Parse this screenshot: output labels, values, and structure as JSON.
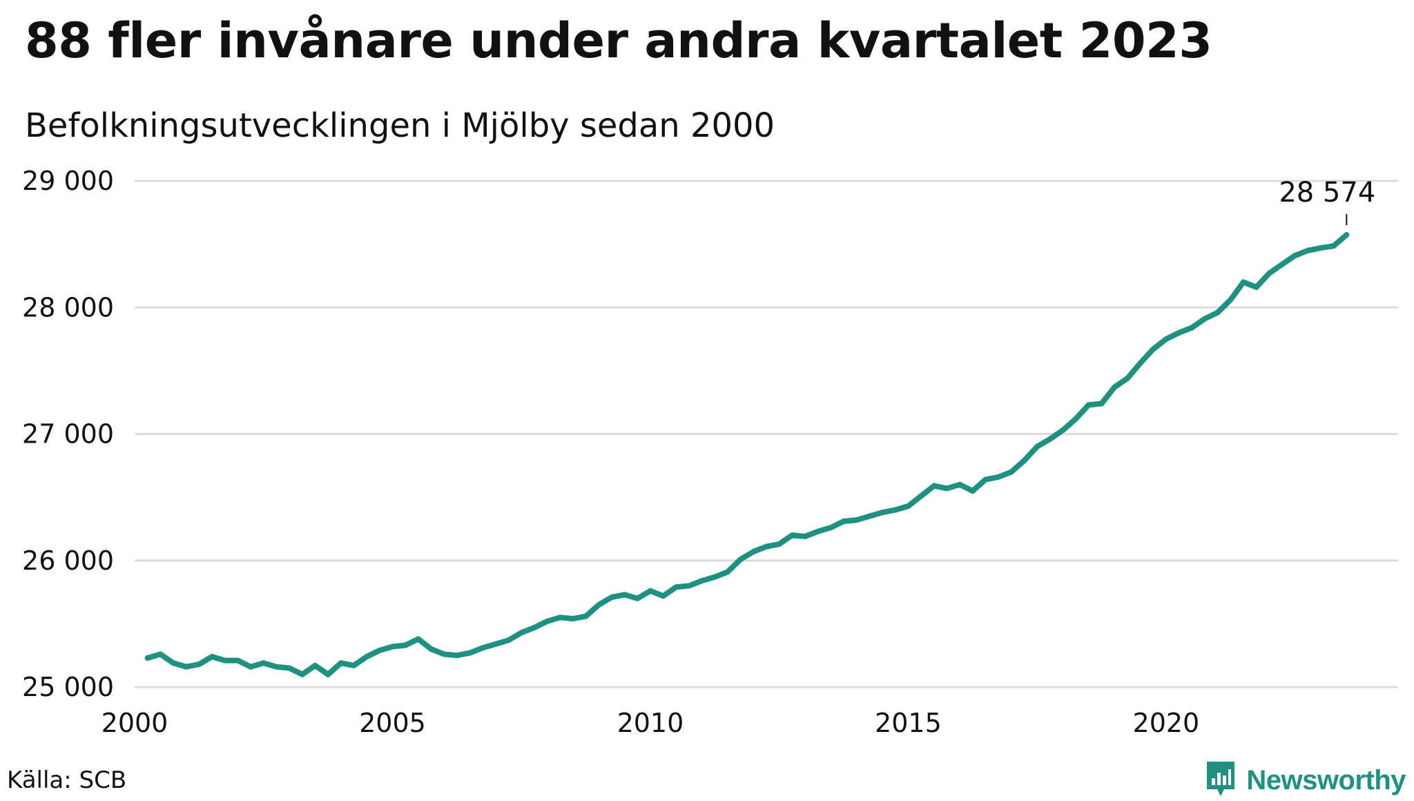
{
  "header": {
    "title": "88 fler invånare under andra kvartalet 2023",
    "subtitle": "Befolkningsutvecklingen i Mjölby sedan 2000"
  },
  "footer": {
    "source": "Källa: SCB",
    "brand": "Newsworthy",
    "brand_icon": "bar-chart-speech-bubble-icon"
  },
  "colors": {
    "line": "#1f9180",
    "grid": "#dcdcdc",
    "brand": "#1f9180"
  },
  "chart_data": {
    "type": "line",
    "title": "88 fler invånare under andra kvartalet 2023",
    "subtitle": "Befolkningsutvecklingen i Mjölby sedan 2000",
    "xlabel": "",
    "ylabel": "",
    "xlim": [
      2000,
      2024.5
    ],
    "ylim": [
      25000,
      29000
    ],
    "x_ticks": [
      2000,
      2005,
      2010,
      2015,
      2020
    ],
    "y_ticks": [
      25000,
      26000,
      27000,
      28000,
      29000
    ],
    "y_tick_labels": [
      "25 000",
      "26 000",
      "27 000",
      "28 000",
      "29 000"
    ],
    "grid": "horizontal",
    "legend": "none",
    "end_label": "28 574",
    "series": [
      {
        "x_start": 2000.25,
        "x_step": 0.25,
        "values": [
          25230,
          25260,
          25190,
          25160,
          25180,
          25240,
          25210,
          25210,
          25160,
          25190,
          25160,
          25150,
          25100,
          25170,
          25100,
          25190,
          25170,
          25240,
          25290,
          25320,
          25330,
          25380,
          25300,
          25260,
          25250,
          25270,
          25310,
          25340,
          25370,
          25430,
          25470,
          25520,
          25550,
          25540,
          25560,
          25650,
          25710,
          25730,
          25700,
          25760,
          25720,
          25790,
          25800,
          25840,
          25870,
          25910,
          26010,
          26070,
          26110,
          26130,
          26200,
          26190,
          26230,
          26260,
          26310,
          26320,
          26350,
          26380,
          26400,
          26430,
          26510,
          26590,
          26570,
          26600,
          26550,
          26640,
          26660,
          26700,
          26790,
          26900,
          26960,
          27030,
          27120,
          27230,
          27240,
          27370,
          27440,
          27560,
          27670,
          27750,
          27800,
          27840,
          27910,
          27960,
          28060,
          28200,
          28160,
          28270,
          28340,
          28410,
          28450,
          28470,
          28486,
          28574
        ]
      }
    ]
  }
}
